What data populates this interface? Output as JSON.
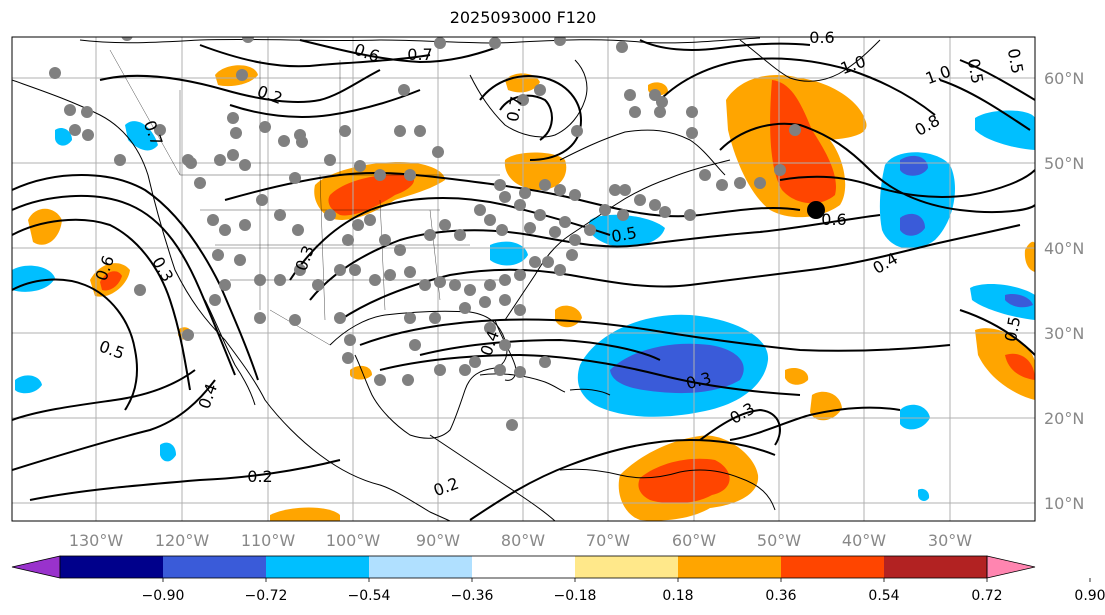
{
  "title": "2025093000 F120",
  "colors": {
    "anomaly_pos": [
      "#ffe88a",
      "#ffa500",
      "#ff4500",
      "#b22222",
      "#ff85b0"
    ],
    "anomaly_neg": [
      "#b0e0ff",
      "#00bfff",
      "#3a5bd9",
      "#00008b",
      "#9932cc"
    ],
    "contour": "#000000",
    "coast": "#000000",
    "grid": "#b0b0b0",
    "station_dot": "#808080",
    "marker": "#000000"
  },
  "lon_labels": [
    "130°W",
    "120°W",
    "110°W",
    "100°W",
    "90°W",
    "80°W",
    "70°W",
    "60°W",
    "50°W",
    "40°W",
    "30°W"
  ],
  "lat_labels": [
    "60°N",
    "50°N",
    "40°N",
    "30°N",
    "20°N",
    "10°N"
  ],
  "contour_labels": [
    "0.6",
    "0.7",
    "0.2",
    "0.6",
    "0.7",
    "0.6",
    "1.0",
    "0.8",
    "0.6",
    "0.5",
    "0.4",
    "0.3",
    "0.5",
    "0.3",
    "0.3",
    "0.4",
    "0.5",
    "0.4",
    "0.2",
    "0.2",
    "0.5",
    "0.3",
    "1.0",
    "0.5",
    "0.7"
  ],
  "colorbar": {
    "tick_labels": [
      "−0.90",
      "−0.72",
      "−0.54",
      "−0.36",
      "−0.18",
      "0.18",
      "0.36",
      "0.54",
      "0.72",
      "0.90"
    ],
    "segments": [
      "#9932cc",
      "#00008b",
      "#3a5bd9",
      "#00bfff",
      "#b0e0ff",
      "#ffffff",
      "#ffe88a",
      "#ffa500",
      "#ff4500",
      "#b22222",
      "#ff85b0"
    ]
  }
}
